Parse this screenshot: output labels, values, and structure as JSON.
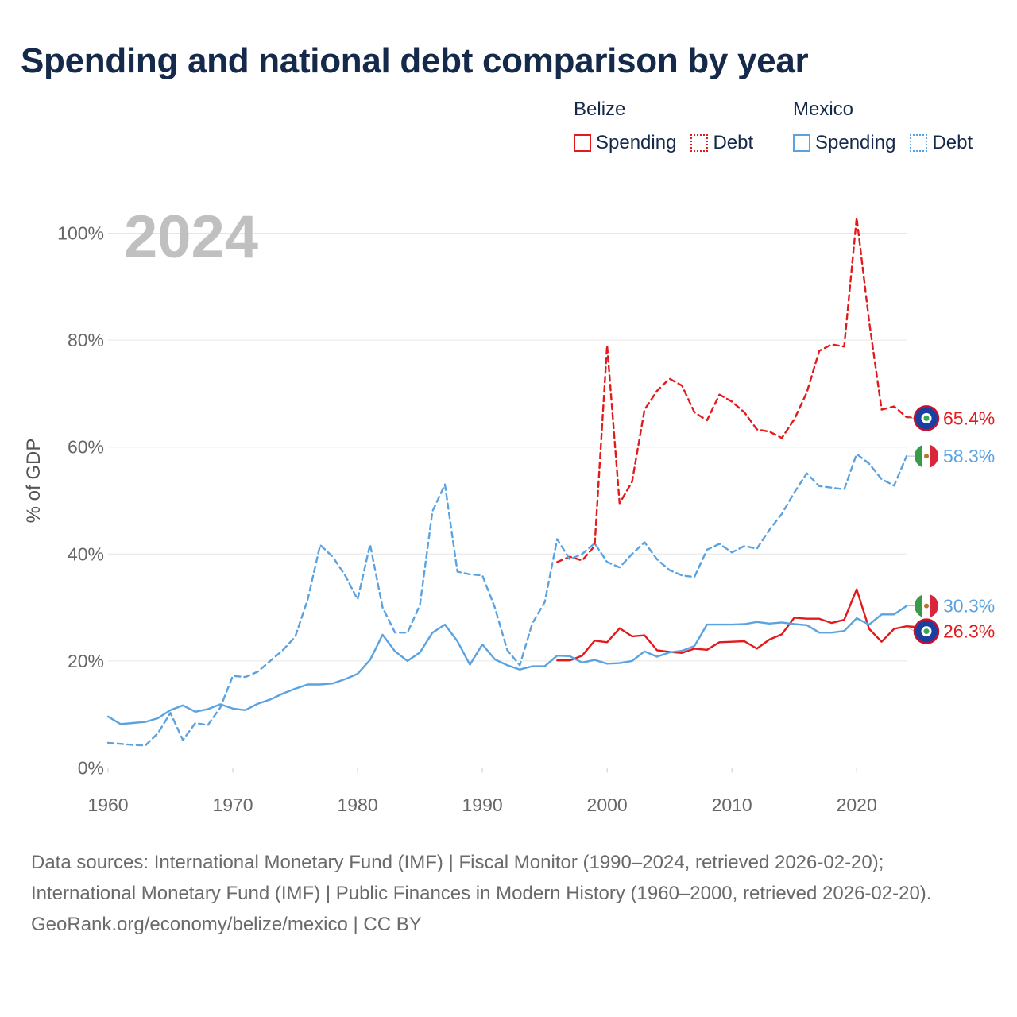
{
  "title": "Spending and national debt comparison by year",
  "legend": {
    "groups": [
      {
        "country": "Belize",
        "items": [
          "Spending",
          "Debt"
        ]
      },
      {
        "country": "Mexico",
        "items": [
          "Spending",
          "Debt"
        ]
      }
    ]
  },
  "colors": {
    "belize": "#e31a1c",
    "mexico": "#5aa3e0",
    "title": "#15294a",
    "year": "#c0c0c0"
  },
  "footer": {
    "sources": "Data sources: International Monetary Fund (IMF) | Fiscal Monitor (1990–2024, retrieved 2026-02-20); International Monetary Fund (IMF) | Public Finances in Modern History (1960–2000, retrieved 2026-02-20).",
    "credit": "GeoRank.org/economy/belize/mexico | CC BY"
  },
  "chart_data": {
    "type": "line",
    "year_label": "2024",
    "ylabel": "% of GDP",
    "xlim": [
      1960,
      2024
    ],
    "ylim": [
      0,
      100
    ],
    "x_ticks": [
      "1960",
      "1970",
      "1980",
      "1990",
      "2000",
      "2010",
      "2020"
    ],
    "y_ticks": [
      "0%",
      "20%",
      "40%",
      "60%",
      "80%",
      "100%"
    ],
    "series": [
      {
        "name": "Belize Debt",
        "country": "Belize",
        "kind": "debt",
        "dashed": true,
        "end_label": "65.4%",
        "start_year": 1996,
        "values": [
          38.5,
          39.5,
          38.8,
          41.5,
          79.0,
          49.5,
          53.5,
          67.0,
          70.5,
          72.8,
          71.5,
          66.5,
          65.0,
          69.8,
          68.5,
          66.5,
          63.3,
          62.9,
          61.7,
          65.2,
          70.2,
          78.0,
          79.2,
          78.8,
          102.9,
          83.5,
          67.0,
          67.6,
          65.6,
          65.4
        ]
      },
      {
        "name": "Mexico Debt",
        "country": "Mexico",
        "kind": "debt",
        "dashed": true,
        "end_label": "58.3%",
        "start_year": 1960,
        "values": [
          4.7,
          4.5,
          4.3,
          4.2,
          6.5,
          10.3,
          5.2,
          8.4,
          8.0,
          11.3,
          17.2,
          17.0,
          18.0,
          20.0,
          22.0,
          24.5,
          31.5,
          41.7,
          39.5,
          36.0,
          31.5,
          41.8,
          30.0,
          25.3,
          25.3,
          30.5,
          48.0,
          53.0,
          36.7,
          36.2,
          36.0,
          30.0,
          22.0,
          19.2,
          27.0,
          31.0,
          42.8,
          39.0,
          40.0,
          42.0,
          38.5,
          37.5,
          40.0,
          42.2,
          39.0,
          37.0,
          36.0,
          35.7,
          40.8,
          41.9,
          40.3,
          41.5,
          41.0,
          44.5,
          47.5,
          51.5,
          55.1,
          52.7,
          52.4,
          52.1,
          58.7,
          56.9,
          54.0,
          52.8,
          58.3
        ]
      },
      {
        "name": "Belize Spending",
        "country": "Belize",
        "kind": "spending",
        "dashed": false,
        "end_label": "26.3%",
        "start_year": 1996,
        "values": [
          20.1,
          20.1,
          21.0,
          23.8,
          23.5,
          26.1,
          24.6,
          24.8,
          22.0,
          21.7,
          21.5,
          22.3,
          22.1,
          23.5,
          23.6,
          23.7,
          22.3,
          24.0,
          25.0,
          28.1,
          27.9,
          27.9,
          27.1,
          27.7,
          33.4,
          26.0,
          23.6,
          26.0,
          26.5,
          26.3
        ]
      },
      {
        "name": "Mexico Spending",
        "country": "Mexico",
        "kind": "spending",
        "dashed": false,
        "end_label": "30.3%",
        "start_year": 1960,
        "values": [
          9.6,
          8.2,
          8.4,
          8.6,
          9.3,
          10.8,
          11.7,
          10.5,
          11.0,
          11.9,
          11.1,
          10.8,
          12.0,
          12.8,
          13.9,
          14.8,
          15.6,
          15.6,
          15.8,
          16.6,
          17.6,
          20.2,
          24.9,
          21.8,
          20.0,
          21.6,
          25.3,
          26.8,
          23.7,
          19.3,
          23.1,
          20.3,
          19.2,
          18.4,
          19.0,
          19.0,
          21.0,
          20.9,
          19.7,
          20.2,
          19.5,
          19.6,
          20.0,
          21.8,
          20.8,
          21.6,
          21.9,
          22.8,
          26.8,
          26.8,
          26.8,
          26.9,
          27.3,
          27.0,
          27.2,
          26.9,
          26.7,
          25.3,
          25.3,
          25.6,
          28.0,
          26.8,
          28.7,
          28.7,
          30.3
        ]
      }
    ]
  }
}
